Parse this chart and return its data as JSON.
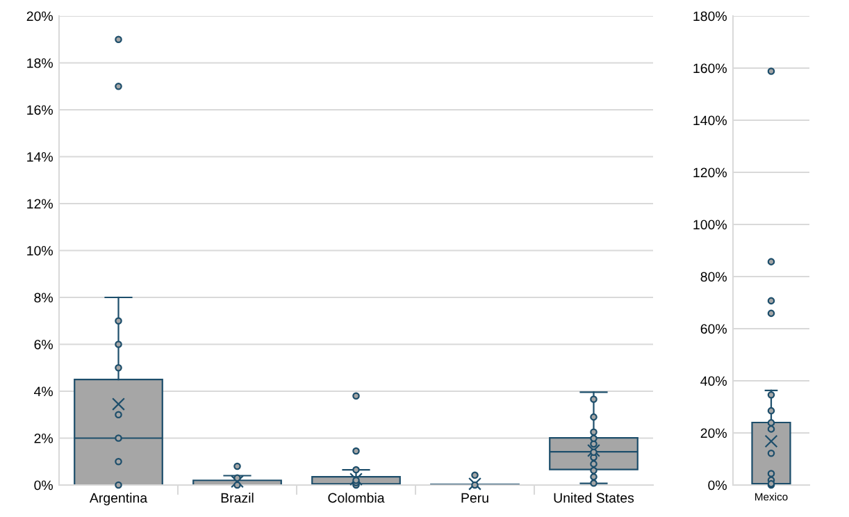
{
  "chart_data": [
    {
      "type": "box",
      "categories": [
        "Argentina",
        "Brazil",
        "Colombia",
        "Peru",
        "United States"
      ],
      "ylim": [
        0,
        20
      ],
      "yticks": [
        {
          "value": 0,
          "label": "0%"
        },
        {
          "value": 2,
          "label": "2%"
        },
        {
          "value": 4,
          "label": "4%"
        },
        {
          "value": 6,
          "label": "6%"
        },
        {
          "value": 8,
          "label": "8%"
        },
        {
          "value": 10,
          "label": "10%"
        },
        {
          "value": 12,
          "label": "12%"
        },
        {
          "value": 14,
          "label": "14%"
        },
        {
          "value": 16,
          "label": "16%"
        },
        {
          "value": 18,
          "label": "18%"
        },
        {
          "value": 20,
          "label": "20%"
        }
      ],
      "grid": "y",
      "marker": "circle",
      "series": [
        {
          "color": "#1d4e6b",
          "boxes": [
            {
              "low": 0,
              "q1": 0,
              "median": 2,
              "q3": 4.5,
              "high": 8,
              "mean": 3.45,
              "outliers": [
                17,
                19
              ]
            },
            {
              "low": 0,
              "q1": 0,
              "median": 0,
              "q3": 0.2,
              "high": 0.4,
              "mean": 0.15,
              "outliers": [
                0.8
              ]
            },
            {
              "low": 0,
              "q1": 0,
              "median": 0.05,
              "q3": 0.35,
              "high": 0.65,
              "mean": 0.25,
              "outliers": [
                1.45,
                3.8
              ]
            },
            {
              "low": 0,
              "q1": 0,
              "median": 0,
              "q3": 0.03,
              "high": 0.03,
              "mean": 0.05,
              "outliers": [
                0.42
              ]
            },
            {
              "low": 0.07,
              "q1": 0.66,
              "median": 1.42,
              "q3": 2.01,
              "high": 3.96,
              "mean": 1.47
            }
          ]
        },
        {
          "type": "scatter",
          "color": "#1d4e6b",
          "x": [
            "Argentina",
            "Argentina",
            "Argentina",
            "Argentina",
            "Argentina",
            "Argentina",
            "Argentina",
            "Brazil",
            "Brazil",
            "Colombia",
            "Colombia",
            "Colombia",
            "Colombia",
            "Peru",
            "United States",
            "United States",
            "United States",
            "United States",
            "United States",
            "United States",
            "United States",
            "United States",
            "United States",
            "United States",
            "United States"
          ],
          "values": [
            0,
            1,
            2,
            3,
            5,
            6,
            7,
            0,
            0.3,
            0,
            0.1,
            0.2,
            0.65,
            0,
            0.08,
            0.35,
            0.62,
            0.9,
            1.18,
            1.4,
            1.75,
            1.99,
            2.26,
            2.9,
            3.66
          ]
        }
      ]
    },
    {
      "type": "box",
      "categories": [
        "Mexico"
      ],
      "ylim": [
        0,
        180
      ],
      "yticks": [
        {
          "value": 0,
          "label": "0%"
        },
        {
          "value": 20,
          "label": "20%"
        },
        {
          "value": 40,
          "label": "40%"
        },
        {
          "value": 60,
          "label": "60%"
        },
        {
          "value": 80,
          "label": "80%"
        },
        {
          "value": 100,
          "label": "100%"
        },
        {
          "value": 120,
          "label": "120%"
        },
        {
          "value": 140,
          "label": "140%"
        },
        {
          "value": 160,
          "label": "160%"
        },
        {
          "value": 180,
          "label": "180%"
        }
      ],
      "grid": "y",
      "marker": "circle",
      "series": [
        {
          "color": "#1d4e6b",
          "boxes": [
            {
              "low": 0,
              "q1": 0,
              "median": 0.5,
              "q3": 24,
              "high": 36.3,
              "mean": 16.8,
              "outliers": [
                65.9,
                70.7,
                85.7,
                158.8
              ]
            }
          ]
        },
        {
          "type": "scatter",
          "color": "#1d4e6b",
          "x": [
            "Mexico",
            "Mexico",
            "Mexico",
            "Mexico",
            "Mexico",
            "Mexico",
            "Mexico",
            "Mexico",
            "Mexico"
          ],
          "values": [
            0,
            1.9,
            4.4,
            12.2,
            21.5,
            23.9,
            28.5,
            34.6,
            0.5
          ]
        }
      ]
    }
  ]
}
